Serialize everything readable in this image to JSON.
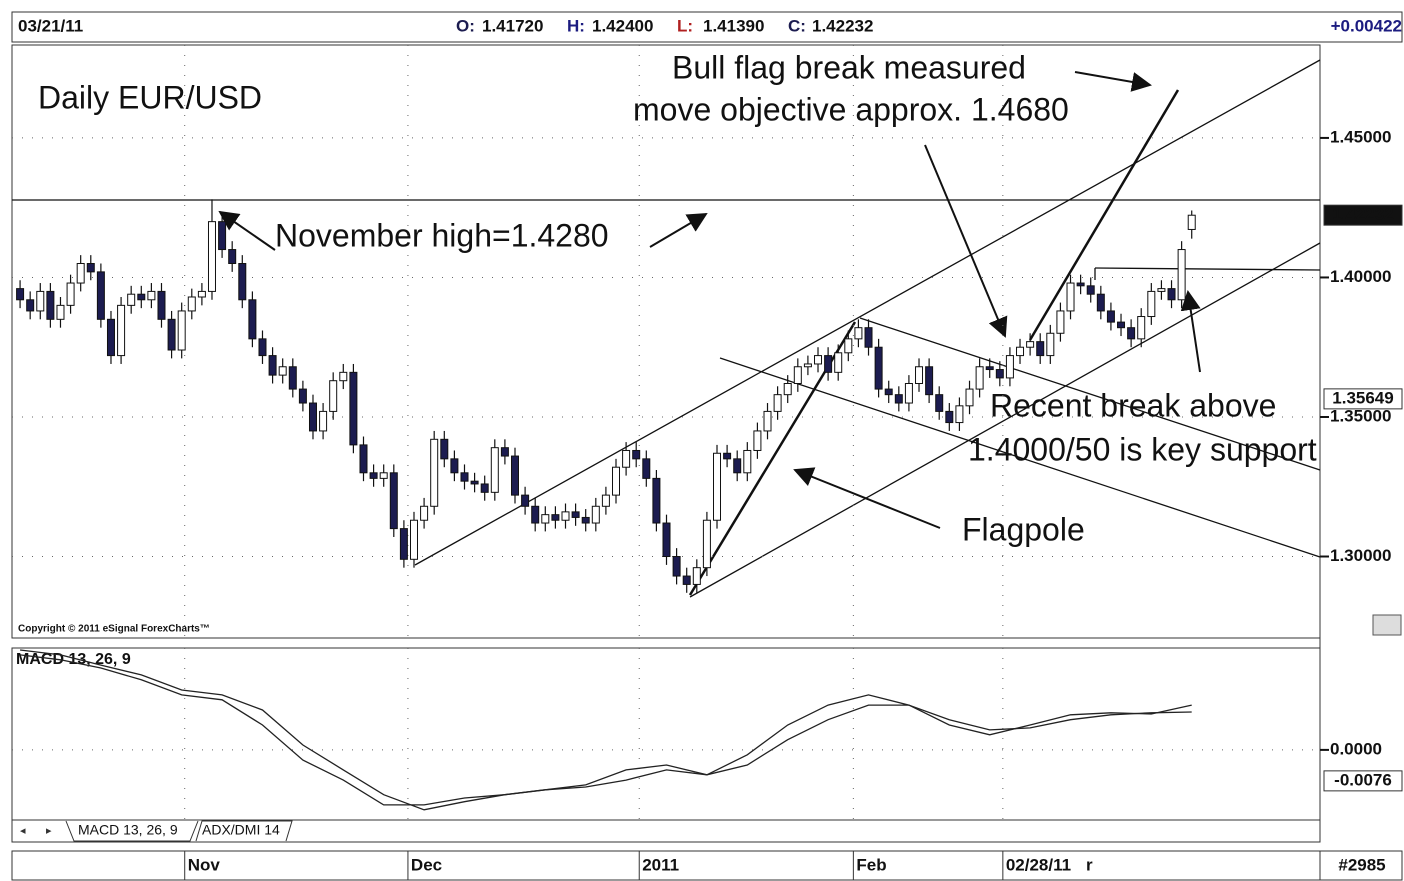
{
  "chart_data": {
    "type": "candlestick",
    "title": "Daily EUR/USD",
    "header": {
      "date": "03/21/11",
      "open": {
        "label": "O:",
        "value": "1.41720"
      },
      "high": {
        "label": "H:",
        "value": "1.42400"
      },
      "low": {
        "label": "L:",
        "value": "1.41390"
      },
      "close": {
        "label": "C:",
        "value": "1.42232"
      },
      "change": "+0.00422"
    },
    "annotations": {
      "november_high": "November high=1.4280",
      "bull_flag_1": "Bull flag break measured",
      "bull_flag_2": "move objective approx. 1.4680",
      "recent_1": "Recent break above",
      "recent_2": "1.4000/50 is key support",
      "flagpole": "Flagpole"
    },
    "copyright": "Copyright © 2011 eSignal ForexCharts™",
    "ohlc": [
      [
        1.396,
        1.399,
        1.389,
        1.392
      ],
      [
        1.392,
        1.395,
        1.385,
        1.388
      ],
      [
        1.388,
        1.398,
        1.385,
        1.395
      ],
      [
        1.395,
        1.398,
        1.382,
        1.385
      ],
      [
        1.385,
        1.393,
        1.382,
        1.39
      ],
      [
        1.39,
        1.401,
        1.387,
        1.398
      ],
      [
        1.398,
        1.408,
        1.395,
        1.405
      ],
      [
        1.405,
        1.408,
        1.399,
        1.402
      ],
      [
        1.402,
        1.405,
        1.382,
        1.385
      ],
      [
        1.385,
        1.388,
        1.369,
        1.372
      ],
      [
        1.372,
        1.393,
        1.369,
        1.39
      ],
      [
        1.39,
        1.397,
        1.387,
        1.394
      ],
      [
        1.394,
        1.397,
        1.389,
        1.392
      ],
      [
        1.392,
        1.398,
        1.389,
        1.395
      ],
      [
        1.395,
        1.398,
        1.382,
        1.385
      ],
      [
        1.385,
        1.388,
        1.371,
        1.374
      ],
      [
        1.374,
        1.391,
        1.371,
        1.388
      ],
      [
        1.388,
        1.396,
        1.385,
        1.393
      ],
      [
        1.393,
        1.398,
        1.39,
        1.395
      ],
      [
        1.395,
        1.428,
        1.392,
        1.42
      ],
      [
        1.42,
        1.423,
        1.407,
        1.41
      ],
      [
        1.41,
        1.413,
        1.402,
        1.405
      ],
      [
        1.405,
        1.408,
        1.389,
        1.392
      ],
      [
        1.392,
        1.395,
        1.375,
        1.378
      ],
      [
        1.378,
        1.381,
        1.369,
        1.372
      ],
      [
        1.372,
        1.375,
        1.362,
        1.365
      ],
      [
        1.365,
        1.371,
        1.362,
        1.368
      ],
      [
        1.368,
        1.371,
        1.357,
        1.36
      ],
      [
        1.36,
        1.363,
        1.352,
        1.355
      ],
      [
        1.355,
        1.358,
        1.342,
        1.345
      ],
      [
        1.345,
        1.355,
        1.342,
        1.352
      ],
      [
        1.352,
        1.366,
        1.349,
        1.363
      ],
      [
        1.363,
        1.369,
        1.36,
        1.366
      ],
      [
        1.366,
        1.369,
        1.337,
        1.34
      ],
      [
        1.34,
        1.343,
        1.327,
        1.33
      ],
      [
        1.33,
        1.333,
        1.325,
        1.328
      ],
      [
        1.328,
        1.333,
        1.325,
        1.33
      ],
      [
        1.33,
        1.333,
        1.307,
        1.31
      ],
      [
        1.31,
        1.313,
        1.296,
        1.299
      ],
      [
        1.299,
        1.316,
        1.296,
        1.313
      ],
      [
        1.313,
        1.321,
        1.31,
        1.318
      ],
      [
        1.318,
        1.345,
        1.315,
        1.342
      ],
      [
        1.342,
        1.345,
        1.332,
        1.335
      ],
      [
        1.335,
        1.338,
        1.327,
        1.33
      ],
      [
        1.33,
        1.333,
        1.324,
        1.327
      ],
      [
        1.327,
        1.33,
        1.323,
        1.326
      ],
      [
        1.326,
        1.329,
        1.32,
        1.323
      ],
      [
        1.323,
        1.342,
        1.32,
        1.339
      ],
      [
        1.339,
        1.342,
        1.333,
        1.336
      ],
      [
        1.336,
        1.339,
        1.319,
        1.322
      ],
      [
        1.322,
        1.325,
        1.315,
        1.318
      ],
      [
        1.318,
        1.321,
        1.309,
        1.312
      ],
      [
        1.312,
        1.318,
        1.309,
        1.315
      ],
      [
        1.315,
        1.318,
        1.31,
        1.313
      ],
      [
        1.313,
        1.319,
        1.31,
        1.316
      ],
      [
        1.316,
        1.319,
        1.311,
        1.314
      ],
      [
        1.314,
        1.317,
        1.309,
        1.312
      ],
      [
        1.312,
        1.321,
        1.309,
        1.318
      ],
      [
        1.318,
        1.325,
        1.315,
        1.322
      ],
      [
        1.322,
        1.335,
        1.319,
        1.332
      ],
      [
        1.332,
        1.341,
        1.329,
        1.338
      ],
      [
        1.338,
        1.341,
        1.332,
        1.335
      ],
      [
        1.335,
        1.338,
        1.325,
        1.328
      ],
      [
        1.328,
        1.331,
        1.309,
        1.312
      ],
      [
        1.312,
        1.315,
        1.297,
        1.3
      ],
      [
        1.3,
        1.303,
        1.29,
        1.293
      ],
      [
        1.293,
        1.296,
        1.287,
        1.29
      ],
      [
        1.29,
        1.299,
        1.287,
        1.296
      ],
      [
        1.296,
        1.316,
        1.293,
        1.313
      ],
      [
        1.313,
        1.34,
        1.31,
        1.337
      ],
      [
        1.337,
        1.34,
        1.332,
        1.335
      ],
      [
        1.335,
        1.338,
        1.327,
        1.33
      ],
      [
        1.33,
        1.341,
        1.327,
        1.338
      ],
      [
        1.338,
        1.348,
        1.335,
        1.345
      ],
      [
        1.345,
        1.355,
        1.342,
        1.352
      ],
      [
        1.352,
        1.361,
        1.349,
        1.358
      ],
      [
        1.358,
        1.365,
        1.355,
        1.362
      ],
      [
        1.362,
        1.371,
        1.359,
        1.368
      ],
      [
        1.368,
        1.372,
        1.365,
        1.369
      ],
      [
        1.369,
        1.375,
        1.366,
        1.372
      ],
      [
        1.372,
        1.375,
        1.363,
        1.366
      ],
      [
        1.366,
        1.376,
        1.363,
        1.373
      ],
      [
        1.373,
        1.381,
        1.37,
        1.378
      ],
      [
        1.378,
        1.385,
        1.375,
        1.382
      ],
      [
        1.382,
        1.385,
        1.372,
        1.375
      ],
      [
        1.375,
        1.378,
        1.357,
        1.36
      ],
      [
        1.36,
        1.363,
        1.355,
        1.358
      ],
      [
        1.358,
        1.361,
        1.352,
        1.355
      ],
      [
        1.355,
        1.365,
        1.352,
        1.362
      ],
      [
        1.362,
        1.371,
        1.359,
        1.368
      ],
      [
        1.368,
        1.371,
        1.355,
        1.358
      ],
      [
        1.358,
        1.361,
        1.349,
        1.352
      ],
      [
        1.352,
        1.355,
        1.345,
        1.348
      ],
      [
        1.348,
        1.357,
        1.345,
        1.354
      ],
      [
        1.354,
        1.363,
        1.351,
        1.36
      ],
      [
        1.36,
        1.371,
        1.357,
        1.368
      ],
      [
        1.368,
        1.371,
        1.364,
        1.367
      ],
      [
        1.367,
        1.37,
        1.361,
        1.364
      ],
      [
        1.364,
        1.375,
        1.361,
        1.372
      ],
      [
        1.372,
        1.378,
        1.369,
        1.375
      ],
      [
        1.375,
        1.38,
        1.372,
        1.377
      ],
      [
        1.377,
        1.38,
        1.369,
        1.372
      ],
      [
        1.372,
        1.383,
        1.369,
        1.38
      ],
      [
        1.38,
        1.391,
        1.377,
        1.388
      ],
      [
        1.388,
        1.401,
        1.385,
        1.398
      ],
      [
        1.398,
        1.401,
        1.394,
        1.397
      ],
      [
        1.397,
        1.4,
        1.391,
        1.394
      ],
      [
        1.394,
        1.397,
        1.385,
        1.388
      ],
      [
        1.388,
        1.391,
        1.381,
        1.384
      ],
      [
        1.384,
        1.387,
        1.379,
        1.382
      ],
      [
        1.382,
        1.385,
        1.375,
        1.378
      ],
      [
        1.378,
        1.389,
        1.375,
        1.386
      ],
      [
        1.386,
        1.398,
        1.383,
        1.395
      ],
      [
        1.395,
        1.399,
        1.392,
        1.396
      ],
      [
        1.396,
        1.399,
        1.389,
        1.392
      ],
      [
        1.392,
        1.413,
        1.389,
        1.41
      ],
      [
        1.4172,
        1.424,
        1.4139,
        1.4223
      ]
    ],
    "up_color": "#ffffff",
    "down_color": "#1c1c50",
    "xlim": [
      -0.8,
      128.7
    ],
    "xticks": [
      {
        "value": 16.3,
        "label": "Nov"
      },
      {
        "value": 38.4,
        "label": "Dec"
      },
      {
        "value": 61.3,
        "label": "2011"
      },
      {
        "value": 82.5,
        "label": "Feb"
      },
      {
        "value": 97.3,
        "label": "02/28/11"
      }
    ],
    "x_partial_label": "r",
    "ylim": [
      1.2708,
      1.4833
    ],
    "yticks": [
      {
        "value": 1.45,
        "label": "1.45000"
      },
      {
        "value": 1.4,
        "label": "1.40000"
      },
      {
        "value": 1.35,
        "label": "1.35000"
      },
      {
        "value": 1.3,
        "label": "1.30000"
      }
    ],
    "price_tags": [
      {
        "value": 1.42232,
        "label": "1.42232"
      },
      {
        "value": 1.35649,
        "label": "1.35649"
      }
    ],
    "grid": true,
    "macd": {
      "type": "line",
      "title": "MACD 13, 26, 9",
      "x": [
        0,
        4,
        8,
        12,
        16,
        20,
        24,
        28,
        32,
        36,
        40,
        44,
        48,
        52,
        56,
        60,
        64,
        68,
        72,
        76,
        80,
        84,
        88,
        92,
        96,
        100,
        104,
        108,
        112,
        116
      ],
      "series": [
        {
          "color": "#222222",
          "values": [
            0.0233,
            0.0221,
            0.0201,
            0.0172,
            0.0135,
            0.0123,
            0.0061,
            -0.0025,
            -0.0074,
            -0.0135,
            -0.0135,
            -0.0118,
            -0.011,
            -0.0098,
            -0.0086,
            -0.0049,
            -0.0037,
            -0.0061,
            -0.0012,
            0.0061,
            0.011,
            0.0135,
            0.011,
            0.0061,
            0.0037,
            0.0061,
            0.0086,
            0.0091,
            0.0088,
            0.011
          ]
        },
        {
          "color": "#222222",
          "values": [
            0.0245,
            0.0233,
            0.0208,
            0.0184,
            0.0147,
            0.0135,
            0.0098,
            0.0012,
            -0.0049,
            -0.011,
            -0.0147,
            -0.0127,
            -0.011,
            -0.0098,
            -0.0091,
            -0.0074,
            -0.0049,
            -0.0061,
            -0.0037,
            0.0025,
            0.0074,
            0.011,
            0.011,
            0.0074,
            0.0049,
            0.0054,
            0.0074,
            0.0086,
            0.0091,
            0.0093
          ]
        }
      ],
      "ylim": [
        -0.0172,
        0.025
      ],
      "yticks": [
        {
          "value": 0,
          "label": "0.0000"
        }
      ],
      "price_tags": [
        {
          "value": -0.0076,
          "label": "-0.0076"
        }
      ]
    },
    "tabs": [
      "MACD 13, 26, 9",
      "ADX/DMI 14"
    ],
    "footer_id": "#2985"
  }
}
